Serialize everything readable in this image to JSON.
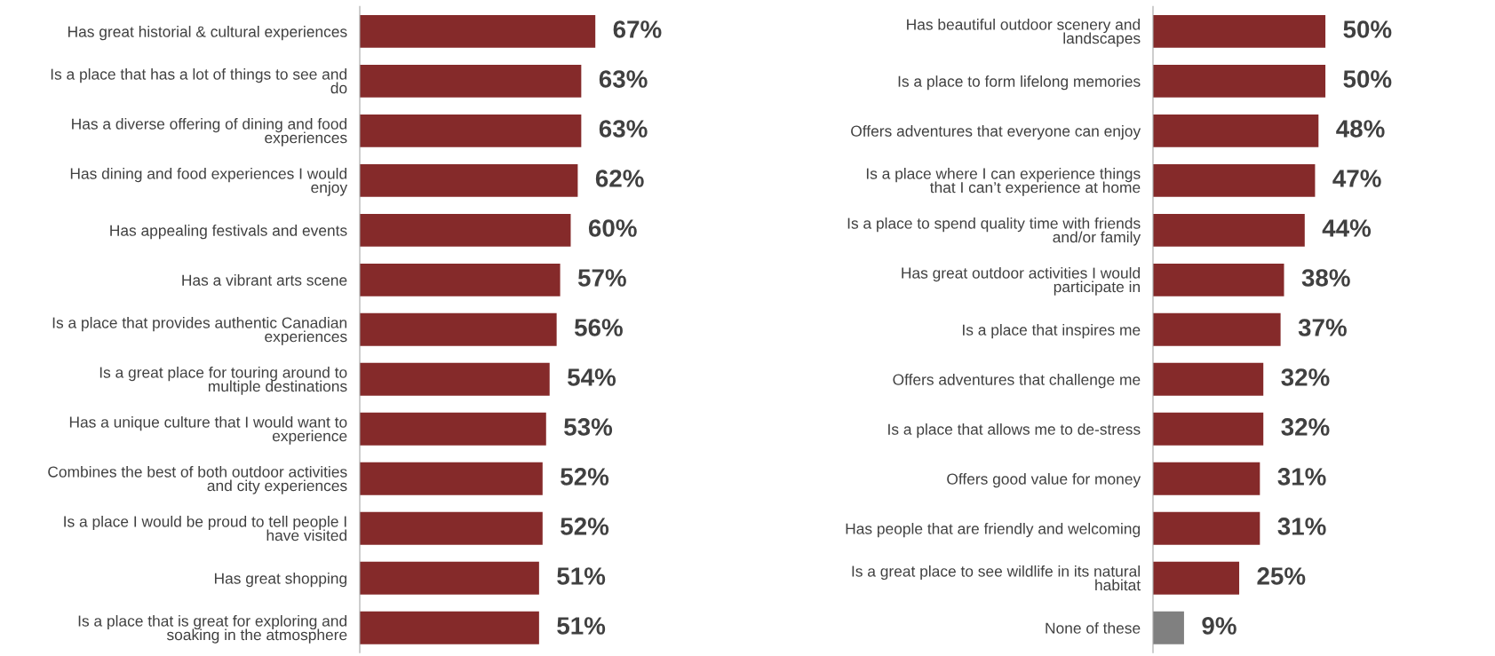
{
  "chart_data": [
    {
      "type": "bar",
      "orientation": "horizontal",
      "value_labels": [
        "67%",
        "63%",
        "63%",
        "62%",
        "60%",
        "57%",
        "56%",
        "54%",
        "53%",
        "52%",
        "52%",
        "51%",
        "51%"
      ],
      "categories": [
        "Has great historial & cultural experiences",
        "Is a place that has a lot of things to see and\ndo",
        "Has a diverse offering of dining and food\nexperiences",
        "Has dining and food experiences I would\nenjoy",
        "Has appealing festivals and events",
        "Has a vibrant arts scene",
        "Is a place that provides authentic Canadian\nexperiences",
        "Is a great place for touring around to\nmultiple destinations",
        "Has a unique culture that I would want to\nexperience",
        "Combines the best of both outdoor activities\nand city experiences",
        "Is a place I would be proud to tell people I\nhave visited",
        "Has great shopping",
        "Is a place that is great for exploring and\nsoaking in the atmosphere"
      ],
      "values": [
        67,
        63,
        63,
        62,
        60,
        57,
        56,
        54,
        53,
        52,
        52,
        51,
        51
      ],
      "colors": [
        "#852a2a",
        "#852a2a",
        "#852a2a",
        "#852a2a",
        "#852a2a",
        "#852a2a",
        "#852a2a",
        "#852a2a",
        "#852a2a",
        "#852a2a",
        "#852a2a",
        "#852a2a",
        "#852a2a"
      ]
    },
    {
      "type": "bar",
      "orientation": "horizontal",
      "value_labels": [
        "50%",
        "50%",
        "48%",
        "47%",
        "44%",
        "38%",
        "37%",
        "32%",
        "32%",
        "31%",
        "31%",
        "25%",
        "9%"
      ],
      "categories": [
        "Has beautiful outdoor scenery and\nlandscapes",
        "Is a place to form lifelong memories",
        "Offers adventures that everyone can enjoy",
        "Is a place where I can experience things\nthat I can’t experience at home",
        "Is a place to spend quality time with friends\nand/or family",
        "Has great outdoor activities I would\nparticipate in",
        "Is a place that inspires me",
        "Offers adventures that challenge me",
        "Is a place that allows me to de-stress",
        "Offers good value for money",
        "Has people that are friendly and welcoming",
        "Is a great place to see wildlife in its natural\nhabitat",
        "None of these"
      ],
      "values": [
        50,
        50,
        48,
        47,
        44,
        38,
        37,
        32,
        32,
        31,
        31,
        25,
        9
      ],
      "colors": [
        "#852a2a",
        "#852a2a",
        "#852a2a",
        "#852a2a",
        "#852a2a",
        "#852a2a",
        "#852a2a",
        "#852a2a",
        "#852a2a",
        "#852a2a",
        "#852a2a",
        "#852a2a",
        "#808080"
      ]
    }
  ]
}
